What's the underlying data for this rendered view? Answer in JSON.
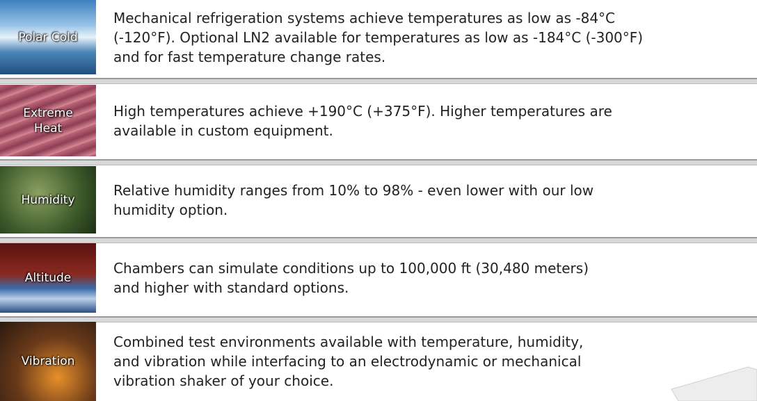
{
  "rows": [
    {
      "label": "Polar Cold",
      "lines": [
        "Mechanical refrigeration systems achieve temperatures as low as -84°C",
        "(-120°F). Optional LN2 available for temperatures as low as -184°C (-300°F)",
        "and for fast temperature change rates."
      ]
    },
    {
      "label": "Extreme Heat",
      "lines": [
        "High temperatures achieve +190°C (+375°F). Higher temperatures are",
        "available in custom equipment."
      ]
    },
    {
      "label": "Humidity",
      "lines": [
        "Relative humidity ranges from 10% to 98% - even lower with our low",
        "humidity option."
      ]
    },
    {
      "label": "Altitude",
      "lines": [
        "Chambers can simulate conditions up to 100,000 ft (30,480 meters)",
        "and higher with standard options."
      ]
    },
    {
      "label": "Vibration",
      "lines": [
        "Combined test environments available with temperature, humidity,",
        "and vibration while interfacing to an electrodynamic or mechanical",
        "vibration shaker of your choice."
      ]
    }
  ]
}
